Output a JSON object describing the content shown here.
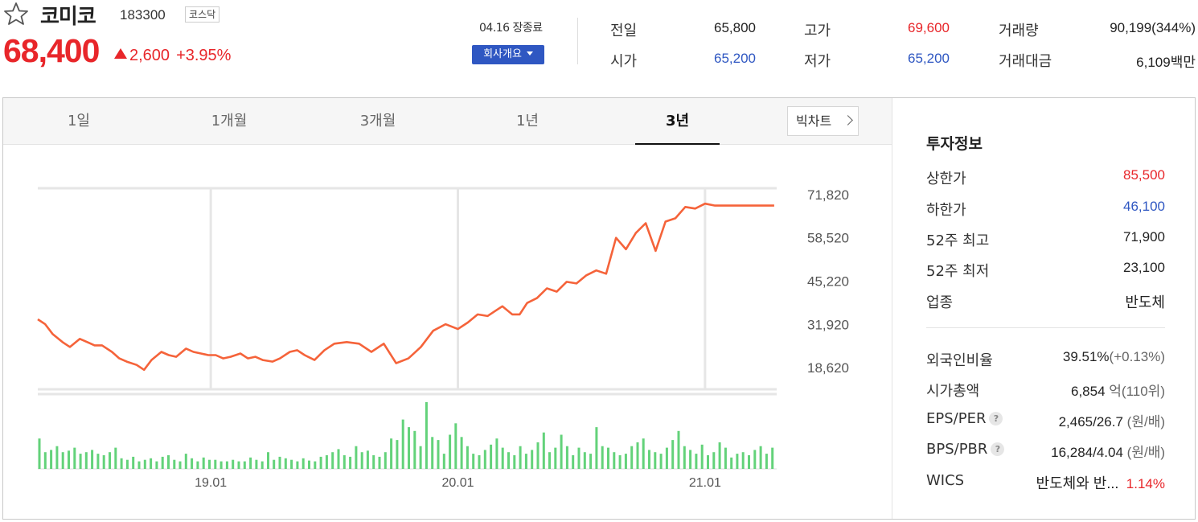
{
  "stock": {
    "name": "코미코",
    "code": "183300",
    "market": "코스닥",
    "price": "68,400",
    "change": "2,600",
    "change_pct": "+3.95%",
    "direction": "up"
  },
  "header": {
    "as_of": "04.16 장종료",
    "company_button": "회사개요"
  },
  "quote": {
    "prev_label": "전일",
    "prev": "65,800",
    "open_label": "시가",
    "open": "65,200",
    "high_label": "고가",
    "high": "69,600",
    "low_label": "저가",
    "low": "65,200",
    "volume_label": "거래량",
    "volume": "90,199(344%)",
    "amount_label": "거래대금",
    "amount": "6,109백만"
  },
  "tabs": [
    {
      "label": "1일",
      "active": false
    },
    {
      "label": "1개월",
      "active": false
    },
    {
      "label": "3개월",
      "active": false
    },
    {
      "label": "1년",
      "active": false
    },
    {
      "label": "3년",
      "active": true
    }
  ],
  "big_chart_button": "빅차트",
  "invest": {
    "title": "투자정보",
    "upper_limit_label": "상한가",
    "upper_limit": "85,500",
    "lower_limit_label": "하한가",
    "lower_limit": "46,100",
    "high52_label": "52주 최고",
    "high52": "71,900",
    "low52_label": "52주 최저",
    "low52": "23,100",
    "industry_label": "업종",
    "industry": "반도체",
    "foreign_label": "외국인비율",
    "foreign": "39.51%",
    "foreign_sub": "(+0.13%)",
    "mcap_label": "시가총액",
    "mcap": "6,854",
    "mcap_unit": "억",
    "mcap_sub": "(110위)",
    "eps_label": "EPS/PER",
    "eps": "2,465/26.7",
    "eps_sub": "(원/배)",
    "bps_label": "BPS/PBR",
    "bps": "16,284/4.04",
    "bps_sub": "(원/배)",
    "wics_label": "WICS",
    "wics": "반도체와 반...",
    "wics_pct": "1.14%"
  },
  "colors": {
    "up": "#e8262a",
    "down": "#2f57c2",
    "line": "#f5633a",
    "volume": "#63d27a",
    "grid": "#e6e6e6"
  },
  "chart_data": {
    "type": "line",
    "title": "",
    "xlabel": "",
    "ylabel": "",
    "y_ticks": [
      "71,820",
      "58,520",
      "45,220",
      "31,920",
      "18,620"
    ],
    "y_tick_values": [
      71820,
      58520,
      45220,
      31920,
      18620
    ],
    "x_ticks": [
      "19.01",
      "20.01",
      "21.01"
    ],
    "x_tick_positions": [
      2019.0,
      2020.0,
      2021.0
    ],
    "xlim": [
      2018.3,
      2021.29
    ],
    "ylim": [
      13000,
      73000
    ],
    "grid": true,
    "price_series": {
      "name": "",
      "x": [
        2018.3,
        2018.33,
        2018.36,
        2018.4,
        2018.43,
        2018.47,
        2018.5,
        2018.53,
        2018.56,
        2018.6,
        2018.63,
        2018.66,
        2018.7,
        2018.73,
        2018.76,
        2018.8,
        2018.83,
        2018.86,
        2018.9,
        2018.93,
        2018.96,
        2018.99,
        2019.02,
        2019.05,
        2019.08,
        2019.12,
        2019.15,
        2019.18,
        2019.21,
        2019.25,
        2019.28,
        2019.32,
        2019.35,
        2019.38,
        2019.42,
        2019.46,
        2019.5,
        2019.55,
        2019.6,
        2019.65,
        2019.7,
        2019.75,
        2019.8,
        2019.85,
        2019.9,
        2019.95,
        2020.0,
        2020.04,
        2020.08,
        2020.12,
        2020.15,
        2020.18,
        2020.22,
        2020.25,
        2020.28,
        2020.32,
        2020.36,
        2020.4,
        2020.44,
        2020.48,
        2020.52,
        2020.56,
        2020.6,
        2020.64,
        2020.68,
        2020.72,
        2020.76,
        2020.8,
        2020.84,
        2020.88,
        2020.92,
        2020.96,
        2021.0,
        2021.04,
        2021.08,
        2021.12,
        2021.16,
        2021.2,
        2021.24,
        2021.28
      ],
      "y": [
        33500,
        32000,
        29000,
        26500,
        25000,
        27500,
        26500,
        25500,
        25500,
        23500,
        21500,
        20500,
        19500,
        18000,
        21000,
        23500,
        22500,
        22000,
        24500,
        23500,
        23000,
        22500,
        22500,
        21500,
        22000,
        23000,
        21500,
        22000,
        21000,
        20500,
        21500,
        23500,
        24000,
        22500,
        21000,
        24000,
        26000,
        26500,
        26000,
        23500,
        26000,
        20000,
        21500,
        25000,
        30000,
        32000,
        30500,
        32500,
        35000,
        34500,
        36000,
        37500,
        35000,
        35000,
        38500,
        40000,
        43000,
        42000,
        45000,
        44500,
        47000,
        48500,
        47500,
        58500,
        55000,
        60000,
        63000,
        54500,
        63500,
        64500,
        68000,
        67500,
        69000,
        68400,
        68400,
        68400,
        68400,
        68400,
        68400,
        68400
      ]
    },
    "volume_series": {
      "name": "",
      "values": [
        40,
        22,
        25,
        30,
        22,
        24,
        28,
        20,
        22,
        25,
        20,
        18,
        22,
        28,
        14,
        12,
        16,
        10,
        12,
        14,
        10,
        16,
        18,
        12,
        10,
        20,
        14,
        10,
        15,
        12,
        12,
        10,
        10,
        12,
        10,
        10,
        15,
        12,
        10,
        22,
        12,
        16,
        14,
        12,
        10,
        14,
        11,
        10,
        16,
        18,
        22,
        26,
        18,
        16,
        30,
        22,
        24,
        18,
        16,
        22,
        40,
        38,
        65,
        55,
        50,
        30,
        88,
        42,
        38,
        20,
        45,
        60,
        42,
        30,
        20,
        18,
        25,
        32,
        40,
        28,
        22,
        18,
        30,
        20,
        25,
        35,
        48,
        22,
        28,
        45,
        30,
        18,
        28,
        22,
        20,
        55,
        30,
        28,
        22,
        18,
        20,
        30,
        35,
        40,
        25,
        22,
        20,
        28,
        38,
        50,
        30,
        25,
        20,
        32,
        18,
        22,
        35,
        28,
        15,
        20,
        22,
        18,
        25,
        30,
        20,
        28
      ]
    }
  }
}
